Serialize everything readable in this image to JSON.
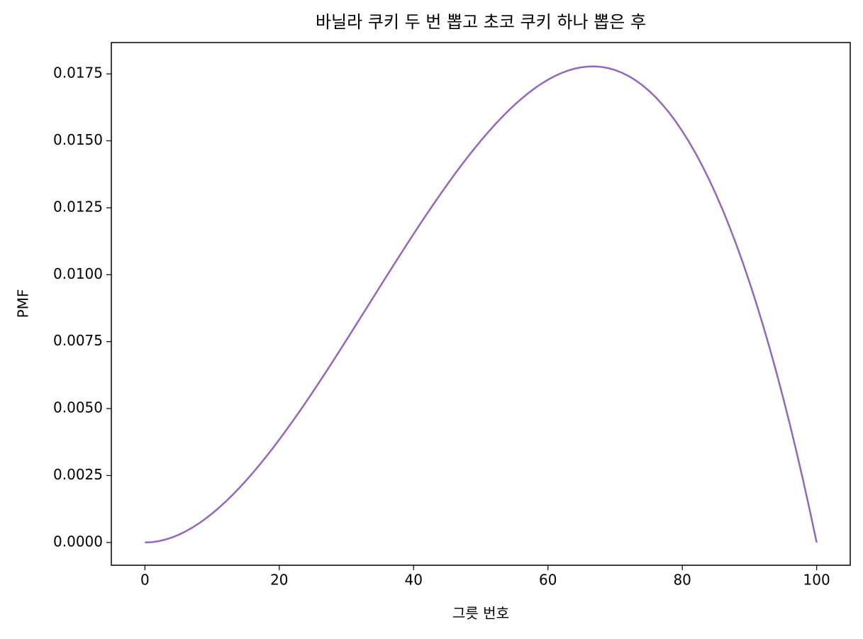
{
  "chart_data": {
    "type": "line",
    "title": "바닐라 쿠키 두 번 뽑고 초코 쿠키 하나 뽑은 후",
    "xlabel": "그릇 번호",
    "ylabel": "PMF",
    "x": [
      0,
      1,
      2,
      3,
      4,
      5,
      6,
      7,
      8,
      9,
      10,
      11,
      12,
      13,
      14,
      15,
      16,
      17,
      18,
      19,
      20,
      21,
      22,
      23,
      24,
      25,
      26,
      27,
      28,
      29,
      30,
      31,
      32,
      33,
      34,
      35,
      36,
      37,
      38,
      39,
      40,
      41,
      42,
      43,
      44,
      45,
      46,
      47,
      48,
      49,
      50,
      51,
      52,
      53,
      54,
      55,
      56,
      57,
      58,
      59,
      60,
      61,
      62,
      63,
      64,
      65,
      66,
      67,
      68,
      69,
      70,
      71,
      72,
      73,
      74,
      75,
      76,
      77,
      78,
      79,
      80,
      81,
      82,
      83,
      84,
      85,
      86,
      87,
      88,
      89,
      90,
      91,
      92,
      93,
      94,
      95,
      96,
      97,
      98,
      99,
      100
    ],
    "series": [
      {
        "color": "#9467bd",
        "values": [
          0,
          1.2e-05,
          4.7e-05,
          0.000105,
          0.000184,
          0.000285,
          0.000406,
          0.000547,
          0.000707,
          0.000885,
          0.00108,
          0.001292,
          0.001521,
          0.001765,
          0.002023,
          0.002295,
          0.002581,
          0.002879,
          0.003189,
          0.003509,
          0.00384,
          0.004181,
          0.004531,
          0.004888,
          0.005254,
          0.005626,
          0.006004,
          0.006387,
          0.006774,
          0.007166,
          0.007561,
          0.007958,
          0.008357,
          0.008756,
          0.009156,
          0.009556,
          0.009954,
          0.010351,
          0.010744,
          0.011135,
          0.011521,
          0.011903,
          0.012279,
          0.012648,
          0.013011,
          0.013366,
          0.013713,
          0.014051,
          0.014378,
          0.014696,
          0.015002,
          0.015295,
          0.015577,
          0.015844,
          0.016098,
          0.016337,
          0.01656,
          0.016767,
          0.016956,
          0.017128,
          0.017282,
          0.017416,
          0.017531,
          0.017624,
          0.017697,
          0.017747,
          0.017774,
          0.017778,
          0.017758,
          0.017713,
          0.017642,
          0.017544,
          0.01742,
          0.017268,
          0.017087,
          0.016877,
          0.016637,
          0.016366,
          0.016063,
          0.015729,
          0.015362,
          0.01496,
          0.014525,
          0.014055,
          0.013549,
          0.013006,
          0.012427,
          0.011809,
          0.011152,
          0.010457,
          0.009721,
          0.008944,
          0.008126,
          0.007266,
          0.006363,
          0.005416,
          0.004424,
          0.003388,
          0.002305,
          0.001176,
          0
        ]
      }
    ],
    "xlim": [
      -5,
      105
    ],
    "ylim": [
      -0.00085,
      0.01867
    ],
    "xticks": [
      0,
      20,
      40,
      60,
      80,
      100
    ],
    "yticks": [
      {
        "value": 0,
        "label": "0.0000"
      },
      {
        "value": 0.0025,
        "label": "0.0025"
      },
      {
        "value": 0.005,
        "label": "0.0050"
      },
      {
        "value": 0.0075,
        "label": "0.0075"
      },
      {
        "value": 0.01,
        "label": "0.0100"
      },
      {
        "value": 0.0125,
        "label": "0.0125"
      },
      {
        "value": 0.015,
        "label": "0.0150"
      },
      {
        "value": 0.0175,
        "label": "0.0175"
      }
    ],
    "grid": false
  }
}
